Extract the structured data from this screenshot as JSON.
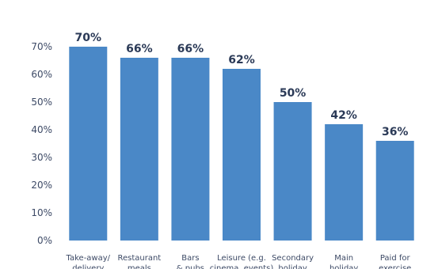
{
  "chart_data": {
    "type": "bar",
    "categories": [
      [
        "Take-away/",
        "delivery"
      ],
      [
        "Restaurant",
        "meals"
      ],
      [
        "Bars",
        "& pubs"
      ],
      [
        "Leisure (e.g.",
        "cinema, events)"
      ],
      [
        "Secondary",
        "holiday"
      ],
      [
        "Main",
        "holiday"
      ],
      [
        "Paid for",
        "exercise"
      ]
    ],
    "values": [
      70,
      66,
      66,
      62,
      50,
      42,
      36
    ],
    "value_labels": [
      "70%",
      "66%",
      "66%",
      "62%",
      "50%",
      "42%",
      "36%"
    ],
    "y_ticks": [
      0,
      10,
      20,
      30,
      40,
      50,
      60,
      70
    ],
    "y_tick_labels": [
      "0%",
      "10%",
      "20%",
      "30%",
      "40%",
      "50%",
      "60%",
      "70%"
    ],
    "ylim": [
      0,
      70
    ],
    "bar_color": "#4a88c7",
    "grid": false,
    "title": "",
    "xlabel": "",
    "ylabel": ""
  }
}
